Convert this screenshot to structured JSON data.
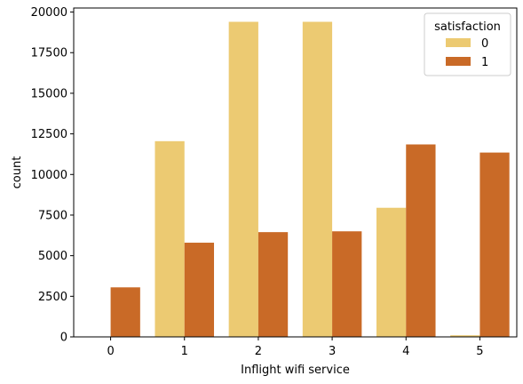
{
  "chart_data": {
    "type": "bar",
    "xlabel": "Inflight wifi service",
    "ylabel": "count",
    "categories": [
      "0",
      "1",
      "2",
      "3",
      "4",
      "5"
    ],
    "ylim": [
      0,
      20250
    ],
    "yticks": [
      0,
      2500,
      5000,
      7500,
      10000,
      12500,
      15000,
      17500,
      20000
    ],
    "legend": {
      "title": "satisfaction",
      "placement": "top-right"
    },
    "series": [
      {
        "name": "0",
        "color": "#ecca72",
        "values": [
          0,
          12050,
          19400,
          19400,
          7950,
          100
        ]
      },
      {
        "name": "1",
        "color": "#c96a27",
        "values": [
          3050,
          5800,
          6450,
          6500,
          11850,
          11350
        ]
      }
    ],
    "grid": false
  }
}
